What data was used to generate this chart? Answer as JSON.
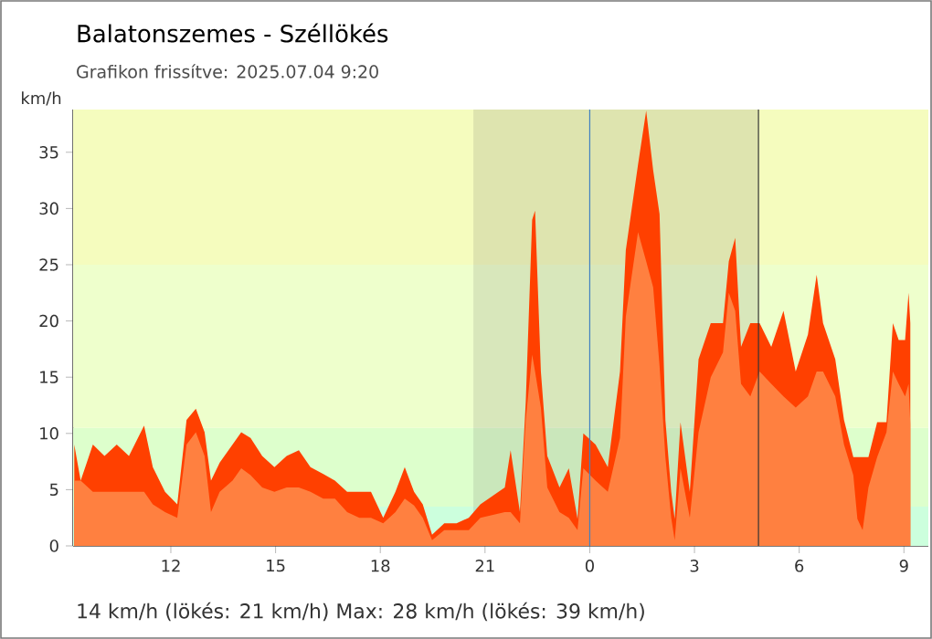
{
  "chart_data": {
    "type": "area",
    "title": "Balatonszemes - Széllökés",
    "subtitle": "Grafikon frissítve: 2025.07.04 9:20",
    "ylabel": "km/h",
    "annotations": [
      "14 km/h  (lökés: 21 km/h)  Max: 28 km/h (lökés: 39 km/h)"
    ],
    "x": [
      "2025-07-03T09:14",
      "2025-07-03T09:25",
      "2025-07-03T09:46",
      "2025-07-03T10:06",
      "2025-07-03T10:27",
      "2025-07-03T10:48",
      "2025-07-03T11:14",
      "2025-07-03T11:29",
      "2025-07-03T11:50",
      "2025-07-03T12:11",
      "2025-07-03T12:27",
      "2025-07-03T12:43",
      "2025-07-03T12:58",
      "2025-07-03T13:09",
      "2025-07-03T13:24",
      "2025-07-03T13:46",
      "2025-07-03T14:01",
      "2025-07-03T14:17",
      "2025-07-03T14:37",
      "2025-07-03T14:58",
      "2025-07-03T15:19",
      "2025-07-03T15:40",
      "2025-07-03T16:00",
      "2025-07-03T16:22",
      "2025-07-03T16:42",
      "2025-07-03T17:03",
      "2025-07-03T17:24",
      "2025-07-03T17:44",
      "2025-07-03T18:05",
      "2025-07-03T18:26",
      "2025-07-03T18:42",
      "2025-07-03T18:58",
      "2025-07-03T19:13",
      "2025-07-03T19:29",
      "2025-07-03T19:50",
      "2025-07-03T20:11",
      "2025-07-03T20:32",
      "2025-07-03T20:52",
      "2025-07-03T21:34",
      "2025-07-03T21:44",
      "2025-07-03T22:00",
      "2025-07-03T22:10",
      "2025-07-03T22:21",
      "2025-07-03T22:26",
      "2025-07-03T22:36",
      "2025-07-03T22:47",
      "2025-07-03T23:08",
      "2025-07-03T23:24",
      "2025-07-03T23:39",
      "2025-07-03T23:49",
      "2025-07-04T00:10",
      "2025-07-04T00:31",
      "2025-07-04T00:52",
      "2025-07-04T01:02",
      "2025-07-04T01:23",
      "2025-07-04T01:37",
      "2025-07-04T01:49",
      "2025-07-04T02:00",
      "2025-07-04T02:10",
      "2025-07-04T02:20",
      "2025-07-04T02:26",
      "2025-07-04T02:36",
      "2025-07-04T02:52",
      "2025-07-04T03:07",
      "2025-07-04T03:28",
      "2025-07-04T03:49",
      "2025-07-04T03:59",
      "2025-07-04T04:10",
      "2025-07-04T04:20",
      "2025-07-04T04:36",
      "2025-07-04T04:52",
      "2025-07-04T05:12",
      "2025-07-04T05:33",
      "2025-07-04T05:54",
      "2025-07-04T06:15",
      "2025-07-04T06:30",
      "2025-07-04T06:41",
      "2025-07-04T07:02",
      "2025-07-04T07:17",
      "2025-07-04T07:33",
      "2025-07-04T07:40",
      "2025-07-04T07:49",
      "2025-07-04T07:59",
      "2025-07-04T08:14",
      "2025-07-04T08:30",
      "2025-07-04T08:41",
      "2025-07-04T08:51",
      "2025-07-04T09:02",
      "2025-07-04T09:08",
      "2025-07-04T09:11"
    ],
    "series": [
      {
        "color": "#ff4000",
        "values": [
          9,
          5.8,
          9,
          8,
          9,
          8,
          10.7,
          7,
          4.8,
          3.7,
          11.2,
          12.2,
          10.1,
          5.8,
          7.4,
          9,
          10.1,
          9.6,
          8,
          7,
          8,
          8.5,
          7,
          6.4,
          5.8,
          4.8,
          4.8,
          4.8,
          2.5,
          4.8,
          7,
          4.8,
          3.7,
          1,
          2,
          2,
          2.5,
          3.7,
          5.2,
          8.5,
          3,
          12.8,
          29,
          29.8,
          15.5,
          8,
          5.2,
          6.9,
          2.4,
          10,
          9,
          7,
          15.5,
          26.3,
          33.9,
          38.7,
          33.4,
          29.5,
          11.2,
          4.8,
          2.4,
          11,
          4.8,
          16.6,
          19.8,
          19.8,
          25.3,
          27.4,
          17.7,
          19.8,
          19.8,
          17.7,
          20.9,
          15.5,
          18.8,
          24.1,
          19.8,
          16.6,
          11.2,
          7.9,
          null,
          null,
          7.9,
          11,
          11,
          19.8,
          18.3,
          18.3,
          22.5,
          19.8
        ]
      },
      {
        "color": "#ff8040",
        "values": [
          5.8,
          5.8,
          4.8,
          4.8,
          4.8,
          4.8,
          4.8,
          3.7,
          3,
          2.5,
          9,
          10.1,
          8,
          3,
          4.8,
          5.8,
          6.9,
          6.3,
          5.2,
          4.8,
          5.2,
          5.2,
          4.8,
          4.2,
          4.2,
          3,
          2.5,
          2.5,
          2,
          3,
          4.2,
          3.6,
          2.5,
          0.5,
          1.4,
          1.4,
          1.4,
          2.5,
          3,
          3,
          2,
          11.2,
          17,
          15.5,
          12.3,
          5.2,
          3,
          2.5,
          1.4,
          6.9,
          5.8,
          4.8,
          9.6,
          20.4,
          27.9,
          25.3,
          23,
          16,
          7.9,
          2.5,
          0.5,
          6.9,
          2.5,
          10.1,
          15,
          17.2,
          22.5,
          20.9,
          14.4,
          13.3,
          15.5,
          14.4,
          13.3,
          12.3,
          13.3,
          15.5,
          15.5,
          13.3,
          9,
          6.3,
          2.4,
          1.4,
          5.2,
          7.9,
          10.1,
          15.5,
          14.4,
          13.3,
          14.4,
          10.8
        ]
      }
    ],
    "xlim": [
      "2025-07-03T09:12",
      "2025-07-04T09:42"
    ],
    "ylim": [
      0,
      38.8
    ],
    "xticks": [
      {
        "value": "2025-07-03T12:00",
        "label": "12"
      },
      {
        "value": "2025-07-03T15:00",
        "label": "15"
      },
      {
        "value": "2025-07-03T18:00",
        "label": "18"
      },
      {
        "value": "2025-07-03T21:00",
        "label": "21"
      },
      {
        "value": "2025-07-04T00:00",
        "label": "0"
      },
      {
        "value": "2025-07-04T03:00",
        "label": "3"
      },
      {
        "value": "2025-07-04T06:00",
        "label": "6"
      },
      {
        "value": "2025-07-04T09:00",
        "label": "9"
      }
    ],
    "yticks": [
      0,
      5,
      10,
      15,
      20,
      25,
      30,
      35
    ],
    "bands": [
      {
        "axis": "y",
        "from": 0,
        "to": 3.5,
        "color": "#ccffdd"
      },
      {
        "axis": "y",
        "from": 3.5,
        "to": 10.5,
        "color": "#ddffcc"
      },
      {
        "axis": "y",
        "from": 10.5,
        "to": 25,
        "color": "#eeffcc"
      },
      {
        "axis": "y",
        "from": 25,
        "to": 38.8,
        "color": "#f5fcbe"
      },
      {
        "axis": "x",
        "from": "2025-07-03T20:40",
        "to": "2025-07-04T04:50",
        "color": "#606060"
      }
    ],
    "ref_lines": [
      {
        "axis": "x",
        "value": "2025-07-04T00:00",
        "color": "#4080c0"
      },
      {
        "axis": "x",
        "value": "2025-07-04T04:50",
        "color": "#333333"
      }
    ]
  }
}
